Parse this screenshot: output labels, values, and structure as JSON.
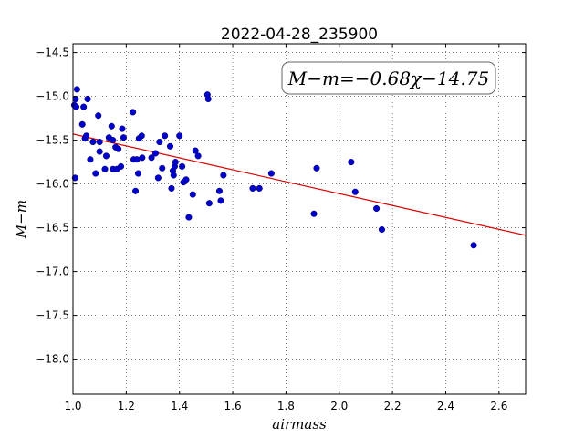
{
  "chart_data": {
    "type": "scatter",
    "title": "2022-04-28_235900",
    "xlabel": "airmass",
    "ylabel": "M−m",
    "xlim": [
      1.0,
      2.7
    ],
    "ylim": [
      -14.4,
      -18.4
    ],
    "y_inverted": true,
    "grid": true,
    "grid_style": "dotted",
    "x_ticks": [
      "1.0",
      "1.2",
      "1.4",
      "1.6",
      "1.8",
      "2.0",
      "2.2",
      "2.4",
      "2.6"
    ],
    "y_ticks": [
      "−14.5",
      "−15.0",
      "−15.5",
      "−16.0",
      "−16.5",
      "−17.0",
      "−17.5",
      "−18.0"
    ],
    "annotation": "M−m=−0.68χ−14.75",
    "fit": {
      "slope": -0.68,
      "intercept": -14.75,
      "color": "#dd0000"
    },
    "marker_color": "#0000cc",
    "points": [
      [
        1.005,
        -15.1
      ],
      [
        1.01,
        -15.03
      ],
      [
        1.015,
        -14.92
      ],
      [
        1.012,
        -15.12
      ],
      [
        1.008,
        -15.93
      ],
      [
        1.04,
        -15.12
      ],
      [
        1.035,
        -15.32
      ],
      [
        1.045,
        -15.48
      ],
      [
        1.055,
        -15.03
      ],
      [
        1.05,
        -15.45
      ],
      [
        1.065,
        -15.72
      ],
      [
        1.075,
        -15.52
      ],
      [
        1.085,
        -15.88
      ],
      [
        1.095,
        -15.22
      ],
      [
        1.1,
        -15.52
      ],
      [
        1.1,
        -15.63
      ],
      [
        1.12,
        -15.83
      ],
      [
        1.125,
        -15.68
      ],
      [
        1.135,
        -15.47
      ],
      [
        1.145,
        -15.34
      ],
      [
        1.15,
        -15.5
      ],
      [
        1.15,
        -15.83
      ],
      [
        1.16,
        -15.58
      ],
      [
        1.165,
        -15.83
      ],
      [
        1.17,
        -15.6
      ],
      [
        1.18,
        -15.8
      ],
      [
        1.185,
        -15.37
      ],
      [
        1.19,
        -15.47
      ],
      [
        1.225,
        -15.18
      ],
      [
        1.228,
        -15.72
      ],
      [
        1.235,
        -16.08
      ],
      [
        1.24,
        -15.72
      ],
      [
        1.245,
        -15.88
      ],
      [
        1.248,
        -15.48
      ],
      [
        1.258,
        -15.45
      ],
      [
        1.26,
        -15.7
      ],
      [
        1.295,
        -15.7
      ],
      [
        1.31,
        -15.65
      ],
      [
        1.32,
        -15.93
      ],
      [
        1.325,
        -15.52
      ],
      [
        1.335,
        -15.82
      ],
      [
        1.345,
        -15.45
      ],
      [
        1.365,
        -15.57
      ],
      [
        1.37,
        -16.05
      ],
      [
        1.375,
        -15.85
      ],
      [
        1.378,
        -15.9
      ],
      [
        1.382,
        -15.8
      ],
      [
        1.385,
        -15.75
      ],
      [
        1.4,
        -15.45
      ],
      [
        1.41,
        -15.8
      ],
      [
        1.415,
        -15.98
      ],
      [
        1.425,
        -15.95
      ],
      [
        1.435,
        -16.38
      ],
      [
        1.45,
        -16.12
      ],
      [
        1.46,
        -15.62
      ],
      [
        1.47,
        -15.68
      ],
      [
        1.505,
        -14.98
      ],
      [
        1.508,
        -15.03
      ],
      [
        1.512,
        -16.22
      ],
      [
        1.55,
        -16.08
      ],
      [
        1.555,
        -16.19
      ],
      [
        1.565,
        -15.9
      ],
      [
        1.675,
        -16.05
      ],
      [
        1.7,
        -16.05
      ],
      [
        1.745,
        -15.88
      ],
      [
        1.905,
        -16.34
      ],
      [
        1.915,
        -15.82
      ],
      [
        2.045,
        -15.75
      ],
      [
        2.06,
        -16.09
      ],
      [
        2.14,
        -16.28
      ],
      [
        2.16,
        -16.52
      ],
      [
        2.505,
        -16.7
      ]
    ]
  }
}
